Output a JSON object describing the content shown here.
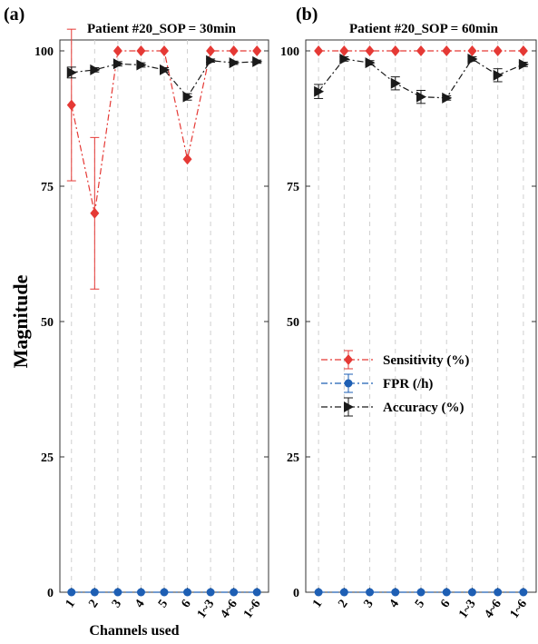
{
  "figure": {
    "ylabel": "Magnitude",
    "xlabel": "Channels used"
  },
  "legend": {
    "placement": "center of panel (b)",
    "entries": [
      {
        "label": "Sensitivity (%)",
        "color": "#e53935",
        "marker": "diamond"
      },
      {
        "label": "FPR (/h)",
        "color": "#1e5fb4",
        "marker": "circle"
      },
      {
        "label": "Accuracy (%)",
        "color": "#1a1a1a",
        "marker": "triangle-right"
      }
    ]
  },
  "chart_data": [
    {
      "type": "line",
      "panel_letter": "(a)",
      "title": "Patient #20_SOP = 30min",
      "xlabel": "Channels used",
      "ylabel": "Magnitude",
      "categories": [
        "1",
        "2",
        "3",
        "4",
        "5",
        "6",
        "1~3",
        "4~6",
        "1~6"
      ],
      "ylim": [
        0,
        100
      ],
      "yticks": [
        0,
        25,
        50,
        75,
        100
      ],
      "grid": "vertical dashed",
      "series": [
        {
          "name": "Sensitivity (%)",
          "values": [
            90,
            70,
            100,
            100,
            100,
            80,
            100,
            100,
            100
          ],
          "errors": [
            14,
            14,
            0,
            0,
            0,
            0,
            0,
            0,
            0
          ]
        },
        {
          "name": "FPR (/h)",
          "values": [
            0,
            0,
            0,
            0,
            0,
            0,
            0,
            0,
            0
          ],
          "errors": [
            0,
            0,
            0,
            0,
            0,
            0,
            0,
            0,
            0
          ]
        },
        {
          "name": "Accuracy (%)",
          "values": [
            96,
            96.5,
            97.6,
            97.4,
            96.5,
            91.5,
            98.2,
            97.8,
            98
          ],
          "errors": [
            1,
            0.4,
            0.4,
            0.4,
            0.4,
            0.6,
            0.3,
            0.3,
            0.3
          ]
        }
      ]
    },
    {
      "type": "line",
      "panel_letter": "(b)",
      "title": "Patient #20_SOP = 60min",
      "xlabel": "",
      "ylabel": "",
      "categories": [
        "1",
        "2",
        "3",
        "4",
        "5",
        "6",
        "1~3",
        "4~6",
        "1~6"
      ],
      "ylim": [
        0,
        100
      ],
      "yticks": [
        0,
        25,
        50,
        75,
        100
      ],
      "grid": "vertical dashed",
      "series": [
        {
          "name": "Sensitivity (%)",
          "values": [
            100,
            100,
            100,
            100,
            100,
            100,
            100,
            100,
            100
          ],
          "errors": [
            0,
            0,
            0,
            0,
            0,
            0,
            0,
            0,
            0
          ]
        },
        {
          "name": "FPR (/h)",
          "values": [
            0,
            0,
            0,
            0,
            0,
            0,
            0,
            0,
            0
          ],
          "errors": [
            0,
            0,
            0,
            0,
            0,
            0,
            0,
            0,
            0
          ]
        },
        {
          "name": "Accuracy (%)",
          "values": [
            92.5,
            98.5,
            97.8,
            94,
            91.5,
            91.3,
            98.5,
            95.5,
            97.5
          ],
          "errors": [
            1.3,
            0.4,
            0.4,
            1.2,
            1.2,
            0.4,
            0.4,
            1.2,
            0.4
          ]
        }
      ]
    }
  ]
}
